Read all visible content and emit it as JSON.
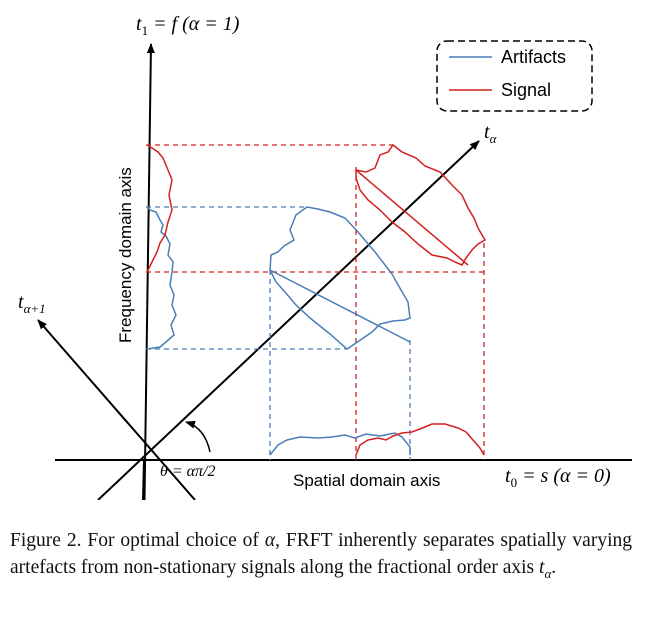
{
  "figure": {
    "axis_labels": {
      "t1_main": "t",
      "t1_sub": "1",
      "t1_rest": " = f (α = 1)",
      "ta_main": "t",
      "ta_sub": "α",
      "ta1_main": "t",
      "ta1_sub": "α+1",
      "t0_main": "t",
      "t0_sub": "0",
      "t0_rest": " = s (α = 0)",
      "frequency": "Frequency domain axis",
      "spatial": "Spatial domain axis",
      "theta": "θ = απ/2"
    },
    "legend": {
      "artifacts": "Artifacts",
      "signal": "Signal"
    },
    "colors": {
      "artifacts": "#4a7eb8",
      "signal": "#d42020",
      "axis": "#000000"
    }
  },
  "caption": {
    "prefix": "Figure 2. For optimal choice of ",
    "alpha": "α",
    "middle": ", FRFT inherently separates spatially varying artefacts from non-stationary signals along the fractional order axis ",
    "t": "t",
    "t_sub": "α",
    "suffix": "."
  }
}
